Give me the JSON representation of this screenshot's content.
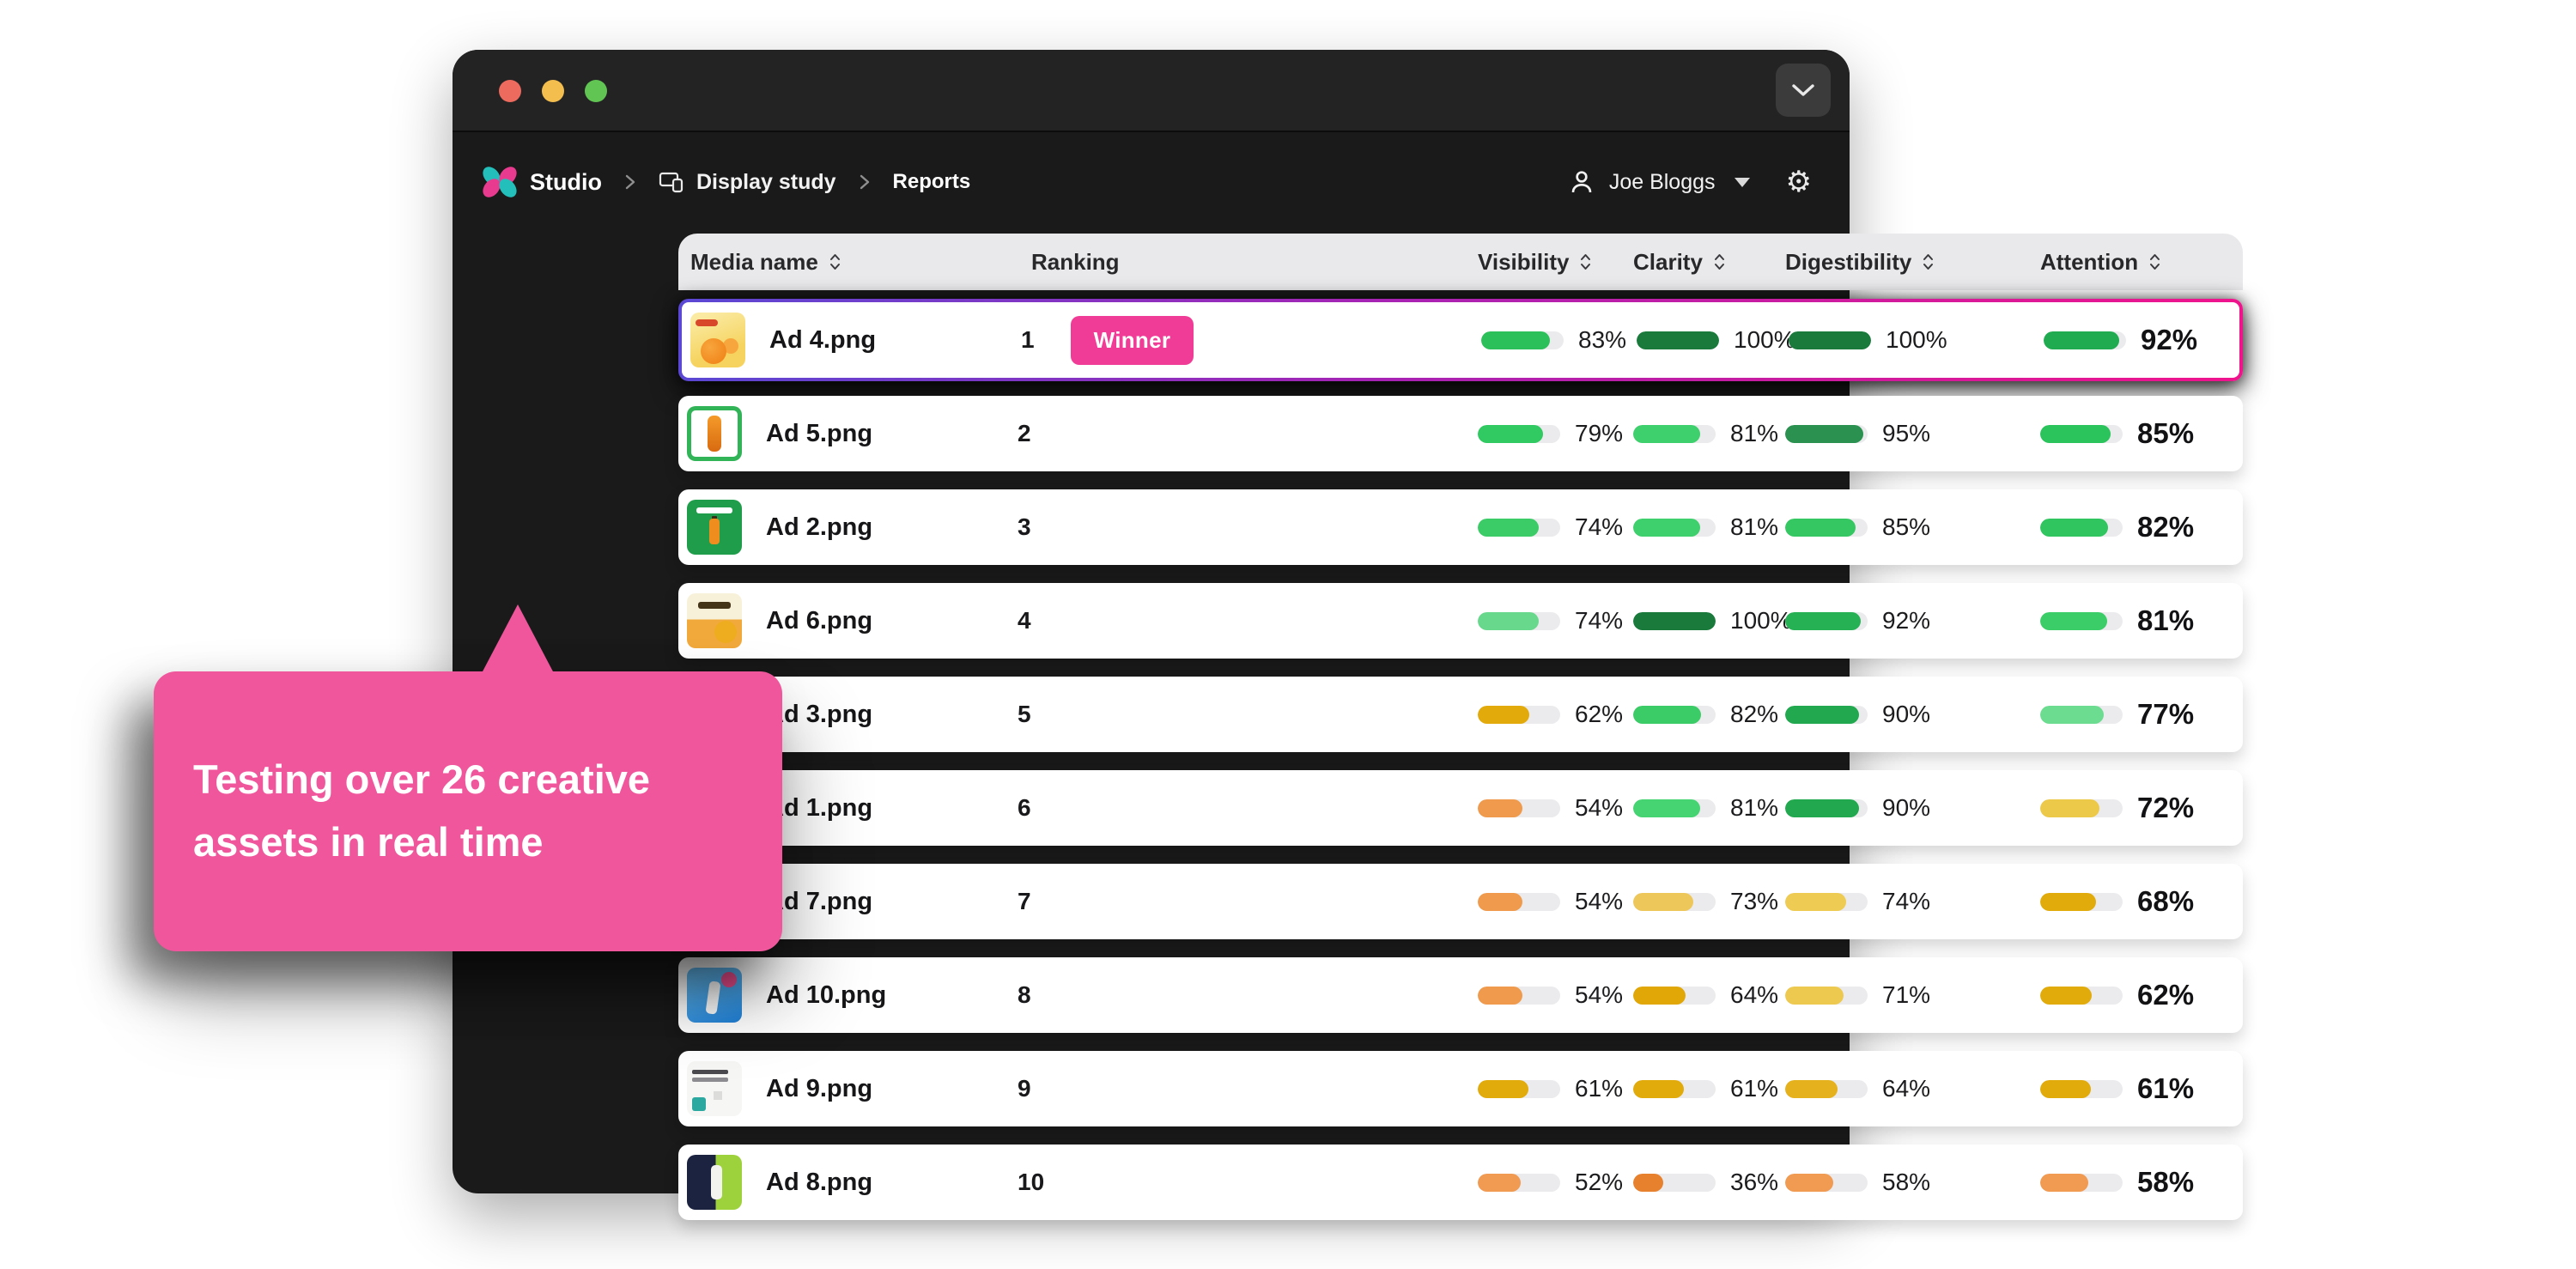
{
  "window": {
    "controls": [
      {
        "name": "close"
      },
      {
        "name": "minimize"
      },
      {
        "name": "maximize"
      }
    ],
    "action_icon": "chevron-down"
  },
  "breadcrumb": {
    "app": "Studio",
    "study": "Display study",
    "page": "Reports"
  },
  "user": {
    "name": "Joe Bloggs"
  },
  "icons": {
    "breadcrumb_separator": "chevron-right",
    "study_icon": "devices",
    "user_icon": "person",
    "user_menu_icon": "caret-down",
    "settings_icon": "gear",
    "sort_icon": "sort-arrows"
  },
  "colors": {
    "window_bg": "#1a1a1a",
    "header_bg": "#e9e9eb",
    "bar_track": "#ebebed",
    "tooltip_pink": "#f0569c",
    "badge_pink": "#f03c96",
    "winner_border_gradient": [
      "#5a48d4",
      "#f0148c"
    ],
    "logo_teal": "#23bfba",
    "logo_pink": "#e83b90"
  },
  "tooltip": {
    "text": "Testing over 26 creative assets in real time"
  },
  "table": {
    "columns": [
      {
        "label": "Media name",
        "sortable": true
      },
      {
        "label": "Ranking",
        "sortable": false
      },
      {
        "label": "Visibility",
        "sortable": true
      },
      {
        "label": "Clarity",
        "sortable": true
      },
      {
        "label": "Digestibility",
        "sortable": true
      },
      {
        "label": "Attention",
        "sortable": true
      }
    ],
    "rows": [
      {
        "media": "Ad 4.png",
        "rank": "1",
        "badge": "Winner",
        "winner": true,
        "metrics": [
          {
            "value": 83,
            "color": "#2cc05a"
          },
          {
            "value": 100,
            "color": "#1a7a3c"
          },
          {
            "value": 100,
            "color": "#1a7a3c"
          },
          {
            "value": 92,
            "color": "#21ab51"
          }
        ]
      },
      {
        "media": "Ad 5.png",
        "rank": "2",
        "metrics": [
          {
            "value": 79,
            "color": "#31c961"
          },
          {
            "value": 81,
            "color": "#3ed06c"
          },
          {
            "value": 95,
            "color": "#2b9150"
          },
          {
            "value": 85,
            "color": "#2bc35c"
          }
        ]
      },
      {
        "media": "Ad 2.png",
        "rank": "3",
        "metrics": [
          {
            "value": 74,
            "color": "#3ccc67"
          },
          {
            "value": 81,
            "color": "#3ed06c"
          },
          {
            "value": 85,
            "color": "#35c862"
          },
          {
            "value": 82,
            "color": "#30c55e"
          }
        ]
      },
      {
        "media": "Ad 6.png",
        "rank": "4",
        "metrics": [
          {
            "value": 74,
            "color": "#68d98c"
          },
          {
            "value": 100,
            "color": "#1a7a3c"
          },
          {
            "value": 92,
            "color": "#26b155"
          },
          {
            "value": 81,
            "color": "#3bcd68"
          }
        ]
      },
      {
        "media": "Ad 3.png",
        "rank": "5",
        "metrics": [
          {
            "value": 62,
            "color": "#e3aa0b"
          },
          {
            "value": 82,
            "color": "#3ccc67"
          },
          {
            "value": 90,
            "color": "#22a94f"
          },
          {
            "value": 77,
            "color": "#6cdd90"
          }
        ]
      },
      {
        "media": "Ad 1.png",
        "rank": "6",
        "metrics": [
          {
            "value": 54,
            "color": "#ef9a4c"
          },
          {
            "value": 81,
            "color": "#45d471"
          },
          {
            "value": 90,
            "color": "#22a94f"
          },
          {
            "value": 72,
            "color": "#edc94a"
          }
        ]
      },
      {
        "media": "Ad 7.png",
        "rank": "7",
        "metrics": [
          {
            "value": 54,
            "color": "#ef9a4c"
          },
          {
            "value": 73,
            "color": "#eec75b"
          },
          {
            "value": 74,
            "color": "#eecb52"
          },
          {
            "value": 68,
            "color": "#e2ab0c"
          }
        ]
      },
      {
        "media": "Ad 10.png",
        "rank": "8",
        "metrics": [
          {
            "value": 54,
            "color": "#ef9a4c"
          },
          {
            "value": 64,
            "color": "#e0a707"
          },
          {
            "value": 71,
            "color": "#eec94f"
          },
          {
            "value": 62,
            "color": "#e2ab0c"
          }
        ]
      },
      {
        "media": "Ad 9.png",
        "rank": "9",
        "metrics": [
          {
            "value": 61,
            "color": "#e2ab0c"
          },
          {
            "value": 61,
            "color": "#e2ab0c"
          },
          {
            "value": 64,
            "color": "#e5b11d"
          },
          {
            "value": 61,
            "color": "#e2ab0c"
          }
        ]
      },
      {
        "media": "Ad 8.png",
        "rank": "10",
        "metrics": [
          {
            "value": 52,
            "color": "#f09a52"
          },
          {
            "value": 36,
            "color": "#e8812d"
          },
          {
            "value": 58,
            "color": "#f09a52"
          },
          {
            "value": 58,
            "color": "#f09a52"
          }
        ]
      }
    ]
  }
}
